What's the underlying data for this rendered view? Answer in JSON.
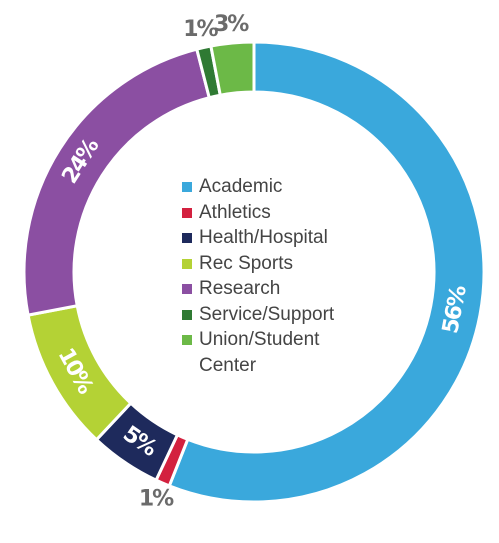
{
  "chart_data": {
    "type": "donut",
    "categories": [
      "Academic",
      "Athletics",
      "Health/Hospital",
      "Rec Sports",
      "Research",
      "Service/Support",
      "Union/Student Center"
    ],
    "values": [
      56,
      1,
      5,
      10,
      24,
      1,
      3
    ],
    "value_labels": [
      "56%",
      "1%",
      "5%",
      "10%",
      "24%",
      "1%",
      "3%"
    ],
    "colors": [
      "#3aa8dc",
      "#d3213f",
      "#1e2a5c",
      "#b4d235",
      "#8b4fa2",
      "#2f7a33",
      "#6cb947"
    ],
    "legend": "center"
  }
}
